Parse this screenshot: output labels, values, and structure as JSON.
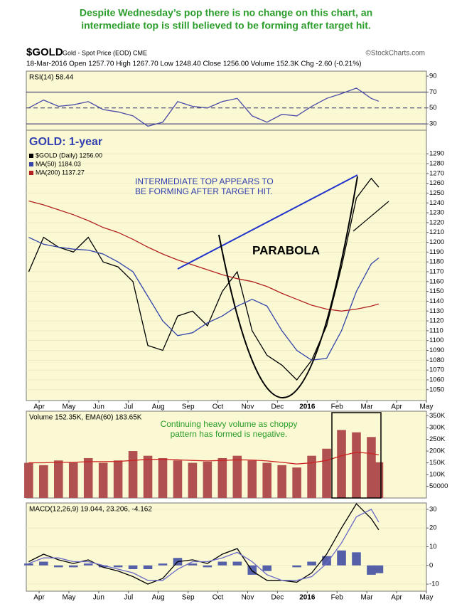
{
  "annotation": [
    "Despite Wednesday’s pop there is no change on this chart, an",
    "intermediate top is still believed to be forming after target hit."
  ],
  "header": {
    "symbol": "$GOLD",
    "description": "Gold - Spot Price (EOD) CME",
    "source": "©StockCharts.com",
    "quote": "18-Mar-2016   Open 1257.70   High 1267.70   Low 1248.40   Close 1256.00   Volume 152.3K   Chg -2.60 (-0.21%)"
  },
  "chart_data": [
    {
      "type": "line",
      "title": "RSI(14) 58.44",
      "x": [
        -0.35,
        0.15,
        0.65,
        1.15,
        1.65,
        2.15,
        2.65,
        3.15,
        3.65,
        4.15,
        4.65,
        5.15,
        5.65,
        6.15,
        6.65,
        7.15,
        7.65,
        8.15,
        8.65,
        9.15,
        9.65,
        10.15,
        10.65,
        11.15,
        11.4
      ],
      "xlim": [
        -0.43,
        13.0
      ],
      "ylim": [
        22,
        96.3
      ],
      "yticks": [
        30,
        50,
        70,
        90
      ],
      "hlines": [
        70,
        30
      ],
      "dashed_hlines": [
        50
      ],
      "series": [
        {
          "color": "#4a4aa8",
          "values": [
            50,
            60,
            52,
            54,
            58,
            48,
            45,
            40,
            27,
            32,
            58,
            52,
            50,
            58,
            62,
            40,
            32,
            42,
            40,
            52,
            62,
            68,
            75,
            62,
            58.44
          ]
        }
      ]
    },
    {
      "type": "line",
      "title": "GOLD: 1-year",
      "x": [
        -0.35,
        0.15,
        0.65,
        1.15,
        1.65,
        2.15,
        2.65,
        3.15,
        3.65,
        4.15,
        4.65,
        5.15,
        5.65,
        6.15,
        6.65,
        7.15,
        7.65,
        8.15,
        8.65,
        9.15,
        9.65,
        10.15,
        10.65,
        11.15,
        11.4
      ],
      "xlim": [
        -0.43,
        13.0
      ],
      "ylim": [
        1039,
        1314
      ],
      "grid": true,
      "yticks": [
        1050,
        1060,
        1070,
        1080,
        1090,
        1100,
        1110,
        1120,
        1130,
        1140,
        1150,
        1160,
        1170,
        1180,
        1190,
        1200,
        1210,
        1220,
        1230,
        1240,
        1250,
        1260,
        1270,
        1280,
        1290
      ],
      "xticks": [
        {
          "value": 0,
          "label": "Apr"
        },
        {
          "value": 1,
          "label": "May"
        },
        {
          "value": 2,
          "label": "Jun"
        },
        {
          "value": 3,
          "label": "Jul"
        },
        {
          "value": 4,
          "label": "Aug"
        },
        {
          "value": 5,
          "label": "Sep"
        },
        {
          "value": 6,
          "label": "Oct"
        },
        {
          "value": 7,
          "label": "Nov"
        },
        {
          "value": 8,
          "label": "Dec"
        },
        {
          "value": 9,
          "label": "2016"
        },
        {
          "value": 10,
          "label": "Feb"
        },
        {
          "value": 11,
          "label": "Mar"
        },
        {
          "value": 12,
          "label": "Apr"
        },
        {
          "value": 13,
          "label": "May"
        }
      ],
      "annotations": [
        "INTERMEDIATE TOP APPEARS TO",
        "BE FORMING AFTER TARGET HIT.",
        "PARABOLA"
      ],
      "series": [
        {
          "name": "$GOLD (Daily) 1256.00",
          "color": "#000000",
          "values": [
            1170,
            1205,
            1195,
            1190,
            1205,
            1180,
            1175,
            1160,
            1095,
            1090,
            1125,
            1130,
            1115,
            1150,
            1170,
            1110,
            1085,
            1075,
            1060,
            1080,
            1115,
            1175,
            1245,
            1265,
            1256
          ]
        },
        {
          "name": "MA(50) 1184.03",
          "color": "#3344aa",
          "values": [
            1205,
            1198,
            1195,
            1193,
            1192,
            1188,
            1180,
            1170,
            1145,
            1120,
            1105,
            1108,
            1118,
            1125,
            1135,
            1142,
            1135,
            1110,
            1090,
            1080,
            1082,
            1110,
            1150,
            1178,
            1184.03
          ]
        },
        {
          "name": "MA(200) 1137.27",
          "color": "#b22222",
          "values": [
            1242,
            1238,
            1233,
            1228,
            1222,
            1215,
            1210,
            1203,
            1195,
            1188,
            1182,
            1177,
            1172,
            1167,
            1163,
            1160,
            1155,
            1148,
            1142,
            1136,
            1132,
            1130,
            1132,
            1135,
            1137.27
          ]
        }
      ]
    },
    {
      "type": "bar",
      "title": "Volume 152.35K, EMA(60) 183.65K",
      "x": [
        -0.35,
        0.15,
        0.65,
        1.15,
        1.65,
        2.15,
        2.65,
        3.15,
        3.65,
        4.15,
        4.65,
        5.15,
        5.65,
        6.15,
        6.65,
        7.15,
        7.65,
        8.15,
        8.65,
        9.15,
        9.65,
        10.15,
        10.65,
        11.15,
        11.4
      ],
      "xlim": [
        -0.43,
        13.0
      ],
      "ylim": [
        0,
        370000
      ],
      "yticks": [
        50000,
        {
          "value": 100000,
          "label": "100K"
        },
        {
          "value": 150000,
          "label": "150K"
        },
        {
          "value": 200000,
          "label": "200K"
        },
        {
          "value": 250000,
          "label": "250K"
        },
        {
          "value": 300000,
          "label": "300K"
        },
        {
          "value": 350000,
          "label": "350K"
        }
      ],
      "annotations": [
        "Continuing heavy volume as choppy",
        "pattern has formed is negative."
      ],
      "series": [
        {
          "color": "#b05050",
          "values": [
            150000,
            140000,
            160000,
            150000,
            170000,
            150000,
            160000,
            200000,
            180000,
            170000,
            160000,
            150000,
            155000,
            170000,
            180000,
            160000,
            150000,
            140000,
            130000,
            180000,
            210000,
            290000,
            280000,
            260000,
            152350
          ]
        },
        {
          "type": "line",
          "color": "#cc2222",
          "values": [
            150000,
            150000,
            152000,
            152000,
            155000,
            155000,
            156000,
            160000,
            165000,
            165000,
            163000,
            160000,
            158000,
            160000,
            163000,
            162000,
            158000,
            152000,
            145000,
            150000,
            160000,
            180000,
            195000,
            190000,
            183650
          ]
        }
      ]
    },
    {
      "type": "line",
      "title": "MACD(12,26,9) 19.044, 23.206, -4.162",
      "x": [
        -0.35,
        0.15,
        0.65,
        1.15,
        1.65,
        2.15,
        2.65,
        3.15,
        3.65,
        4.15,
        4.65,
        5.15,
        5.65,
        6.15,
        6.65,
        7.15,
        7.65,
        8.15,
        8.65,
        9.15,
        9.65,
        10.15,
        10.65,
        11.15,
        11.4
      ],
      "xlim": [
        -0.43,
        13.0
      ],
      "ylim": [
        -13.8,
        33.4
      ],
      "grid": true,
      "yticks": [
        -10,
        0,
        10,
        20,
        30
      ],
      "xticks": [
        {
          "value": 0,
          "label": "Apr"
        },
        {
          "value": 1,
          "label": "May"
        },
        {
          "value": 2,
          "label": "Jun"
        },
        {
          "value": 3,
          "label": "Jul"
        },
        {
          "value": 4,
          "label": "Aug"
        },
        {
          "value": 5,
          "label": "Sep"
        },
        {
          "value": 6,
          "label": "Oct"
        },
        {
          "value": 7,
          "label": "Nov"
        },
        {
          "value": 8,
          "label": "Dec"
        },
        {
          "value": 9,
          "label": "2016"
        },
        {
          "value": 10,
          "label": "Feb"
        },
        {
          "value": 11,
          "label": "Mar"
        },
        {
          "value": 12,
          "label": "Apr"
        },
        {
          "value": 13,
          "label": "May"
        }
      ],
      "series": [
        {
          "type": "bar",
          "color": "#5560a8",
          "values": [
            1,
            2,
            -1,
            -1,
            1,
            -1,
            -1,
            -2,
            -2,
            1,
            4,
            1,
            -1,
            2,
            2,
            -5,
            -3,
            0,
            -1,
            2,
            5,
            8,
            7,
            -5,
            -4.162
          ]
        },
        {
          "color": "#000000",
          "values": [
            2,
            6,
            3,
            1,
            3,
            -1,
            -3,
            -6,
            -10,
            -7,
            2,
            3,
            1,
            6,
            9,
            -3,
            -8,
            -8,
            -9,
            -4,
            6,
            20,
            33,
            25,
            19.044
          ]
        },
        {
          "color": "#6a6ac8",
          "values": [
            1,
            4,
            4,
            2,
            2,
            0,
            -2,
            -4,
            -8,
            -8,
            -2,
            2,
            2,
            4,
            7,
            2,
            -5,
            -8,
            -8,
            -6,
            1,
            12,
            26,
            30,
            23.206
          ]
        }
      ]
    }
  ]
}
